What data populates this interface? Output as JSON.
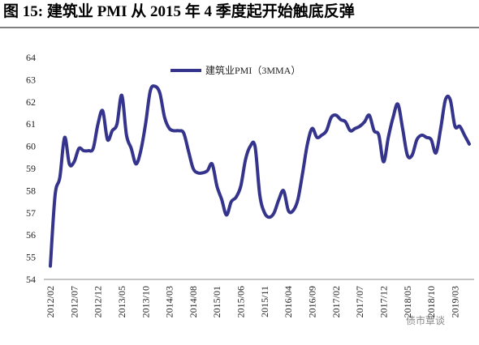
{
  "chart_data": {
    "type": "line",
    "title": "图 15:  建筑业 PMI 从 2015 年 4 季度起开始触底反弹",
    "watermark": "债市覃谈",
    "categories": [
      "2012/02",
      null,
      null,
      null,
      null,
      "2012/07",
      null,
      null,
      null,
      null,
      "2012/12",
      null,
      null,
      null,
      null,
      "2013/05",
      null,
      null,
      null,
      null,
      "2013/10",
      null,
      null,
      null,
      null,
      "2014/03",
      null,
      null,
      null,
      null,
      "2014/08",
      null,
      null,
      null,
      null,
      "2015/01",
      null,
      null,
      null,
      null,
      "2015/06",
      null,
      null,
      null,
      null,
      "2015/11",
      null,
      null,
      null,
      null,
      "2016/04",
      null,
      null,
      null,
      null,
      "2016/09",
      null,
      null,
      null,
      null,
      "2017/02",
      null,
      null,
      null,
      null,
      "2017/07",
      null,
      null,
      null,
      null,
      "2017/12",
      null,
      null,
      null,
      null,
      "2018/05",
      null,
      null,
      null,
      null,
      "2018/10",
      null,
      null,
      null,
      null,
      "2019/03",
      null,
      null,
      null
    ],
    "series": [
      {
        "name": "建筑业PMI（3MMA）",
        "color": "#35348c",
        "values": [
          54.6,
          57.8,
          58.6,
          60.4,
          59.2,
          59.3,
          59.9,
          59.8,
          59.8,
          59.9,
          61.0,
          61.6,
          60.3,
          60.7,
          61.0,
          62.3,
          60.5,
          59.9,
          59.2,
          59.8,
          61.0,
          62.5,
          62.7,
          62.4,
          61.3,
          60.8,
          60.7,
          60.7,
          60.6,
          59.8,
          59.0,
          58.8,
          58.8,
          58.9,
          59.2,
          58.2,
          57.6,
          56.9,
          57.5,
          57.7,
          58.2,
          59.4,
          60.0,
          60.0,
          57.8,
          57.0,
          56.8,
          57.0,
          57.6,
          58.0,
          57.1,
          57.1,
          57.6,
          58.8,
          60.1,
          60.8,
          60.4,
          60.5,
          60.7,
          61.3,
          61.4,
          61.2,
          61.1,
          60.7,
          60.8,
          60.9,
          61.1,
          61.4,
          60.7,
          60.5,
          59.3,
          60.4,
          61.3,
          61.9,
          60.8,
          59.6,
          59.6,
          60.3,
          60.5,
          60.4,
          60.3,
          59.7,
          60.8,
          62.1,
          62.1,
          60.9,
          60.9,
          60.5,
          60.1
        ]
      }
    ],
    "ylim": [
      54,
      64
    ],
    "yticks": [
      54,
      55,
      56,
      57,
      58,
      59,
      60,
      61,
      62,
      63,
      64
    ],
    "legend": "top",
    "grid": false
  }
}
